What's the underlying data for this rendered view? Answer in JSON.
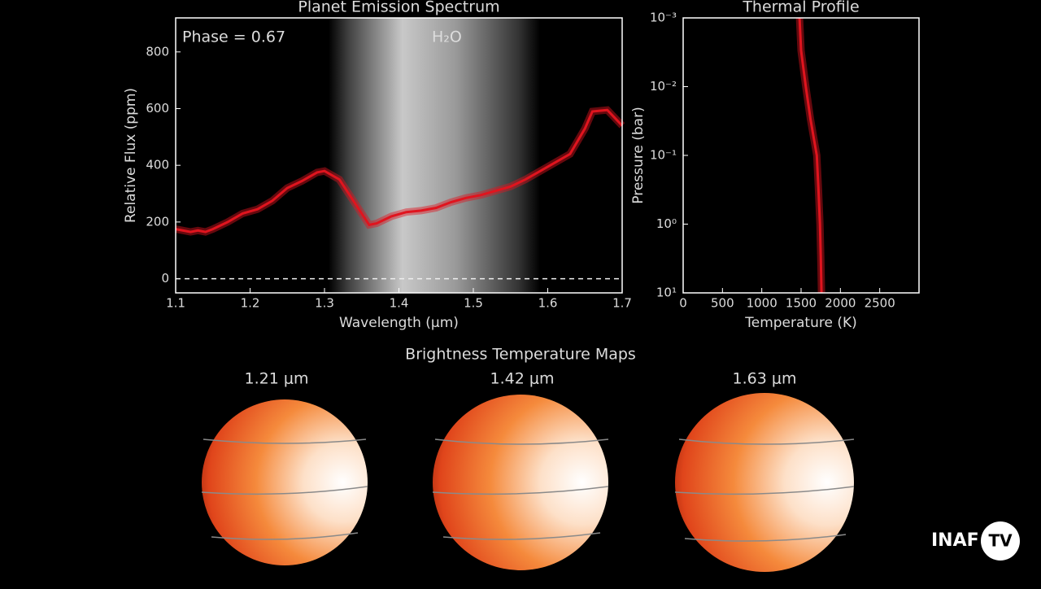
{
  "chart_data": [
    {
      "type": "line",
      "title": "Planet Emission Spectrum",
      "xlabel": "Wavelength (μm)",
      "ylabel": "Relative Flux (ppm)",
      "annotations": [
        "Phase = 0.67",
        "H₂O"
      ],
      "x": [
        1.1,
        1.12,
        1.13,
        1.14,
        1.15,
        1.17,
        1.19,
        1.21,
        1.23,
        1.25,
        1.27,
        1.29,
        1.3,
        1.32,
        1.34,
        1.36,
        1.37,
        1.39,
        1.41,
        1.43,
        1.45,
        1.47,
        1.49,
        1.51,
        1.53,
        1.55,
        1.57,
        1.59,
        1.61,
        1.63,
        1.65,
        1.66,
        1.68,
        1.7
      ],
      "values": [
        175,
        165,
        170,
        165,
        175,
        200,
        230,
        245,
        275,
        320,
        345,
        375,
        380,
        350,
        270,
        190,
        195,
        220,
        235,
        240,
        250,
        270,
        285,
        295,
        310,
        325,
        350,
        380,
        410,
        440,
        530,
        590,
        595,
        540
      ],
      "color": "#e0141e",
      "xlim": [
        1.1,
        1.7
      ],
      "xticks": [
        1.1,
        1.2,
        1.3,
        1.4,
        1.5,
        1.6,
        1.7
      ],
      "ylim": [
        -50,
        920
      ],
      "yticks": [
        0,
        200,
        400,
        600,
        800
      ]
    },
    {
      "type": "line",
      "title": "Thermal Profile",
      "xlabel": "Temperature (K)",
      "ylabel": "Pressure (bar)",
      "x": [
        1480,
        1500,
        1560,
        1620,
        1700,
        1720,
        1740,
        1750,
        1760
      ],
      "values": [
        0.001,
        0.003,
        0.01,
        0.03,
        0.1,
        0.3,
        1,
        3,
        10
      ],
      "color": "#e0141e",
      "ylog": true,
      "xlim": [
        0,
        3000
      ],
      "xticks": [
        0,
        500,
        1000,
        1500,
        2000,
        2500
      ],
      "ylim": [
        10,
        0.001
      ],
      "yticks": [
        {
          "value": 0.001,
          "label": "10⁻³"
        },
        {
          "value": 0.01,
          "label": "10⁻²"
        },
        {
          "value": 0.1,
          "label": "10⁻¹"
        },
        {
          "value": 1,
          "label": "10⁰"
        },
        {
          "value": 10,
          "label": "10¹"
        }
      ]
    }
  ],
  "maps": {
    "title": "Brightness Temperature Maps",
    "labels": [
      "1.21 μm",
      "1.42 μm",
      "1.63 μm"
    ]
  },
  "logo": "INAF"
}
